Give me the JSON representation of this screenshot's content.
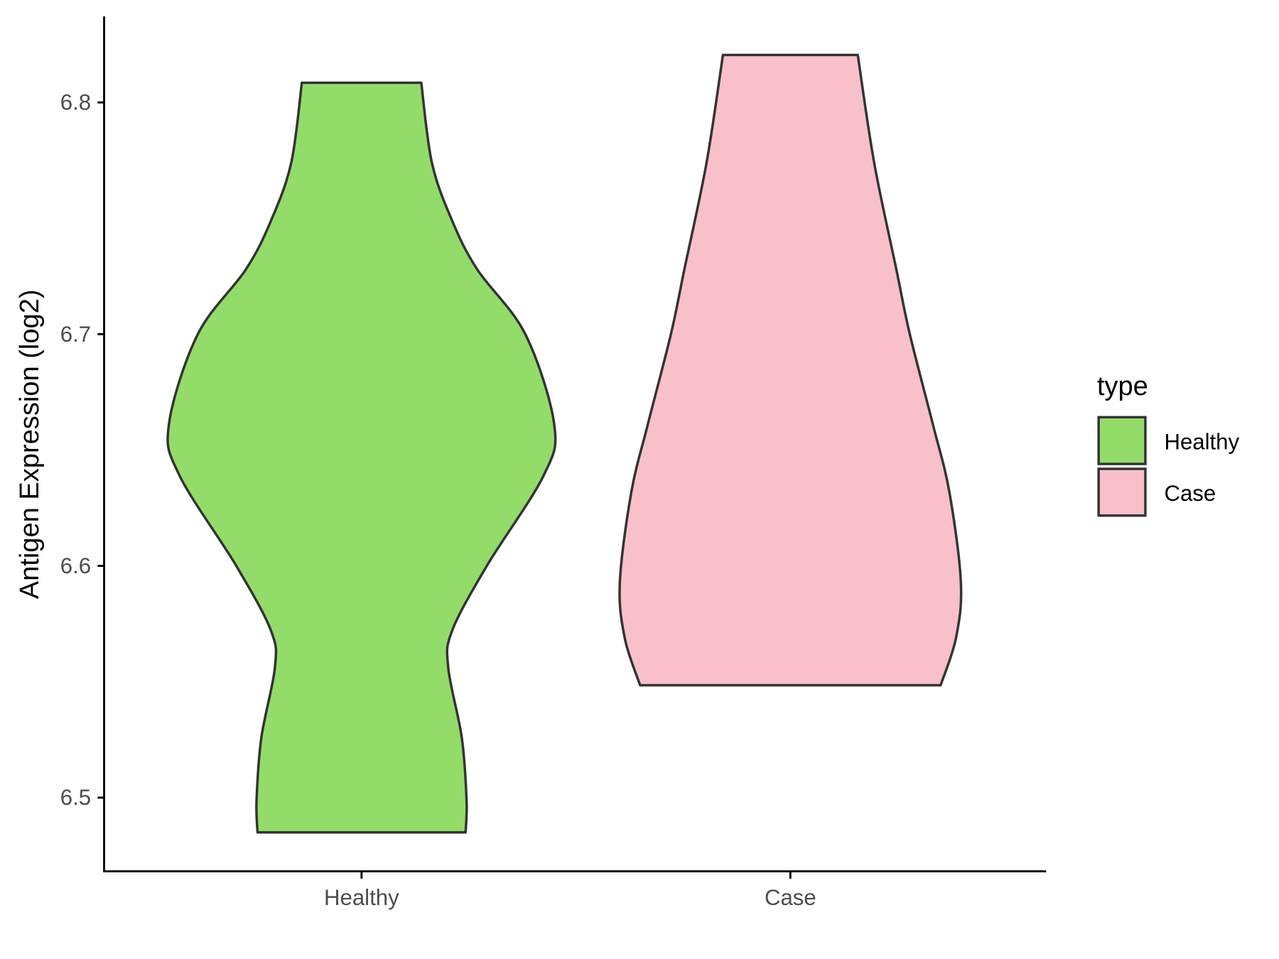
{
  "chart_data": {
    "type": "violin",
    "title": "",
    "xlabel": "",
    "ylabel": "Antigen Expression (log2)",
    "ylim": [
      6.468,
      6.838
    ],
    "yticks": [
      6.5,
      6.6,
      6.7,
      6.8
    ],
    "ytick_labels": [
      "6.5",
      "6.6",
      "6.7",
      "6.8"
    ],
    "categories": [
      "Healthy",
      "Case"
    ],
    "grid": false,
    "legend": {
      "title": "type",
      "placement": "right",
      "entries": [
        "Healthy",
        "Case"
      ]
    },
    "series": [
      {
        "name": "Healthy",
        "color": "#93DC6A",
        "min": 6.485,
        "max": 6.8085,
        "profile_y": [
          6.485,
          6.499,
          6.526,
          6.556,
          6.572,
          6.6,
          6.639,
          6.661,
          6.7,
          6.728,
          6.749,
          6.774,
          6.8085
        ],
        "relative_width": [
          0.54,
          0.545,
          0.52,
          0.45,
          0.47,
          0.65,
          0.945,
          1.0,
          0.85,
          0.6,
          0.47,
          0.365,
          0.31
        ]
      },
      {
        "name": "Case",
        "color": "#F8C0CB",
        "min": 6.5485,
        "max": 6.8205,
        "profile_y": [
          6.5485,
          6.569,
          6.593,
          6.632,
          6.661,
          6.7,
          6.728,
          6.774,
          6.8205
        ],
        "relative_width": [
          0.78,
          0.86,
          0.885,
          0.825,
          0.74,
          0.62,
          0.55,
          0.435,
          0.35
        ]
      }
    ],
    "outline_color": "#333333"
  }
}
